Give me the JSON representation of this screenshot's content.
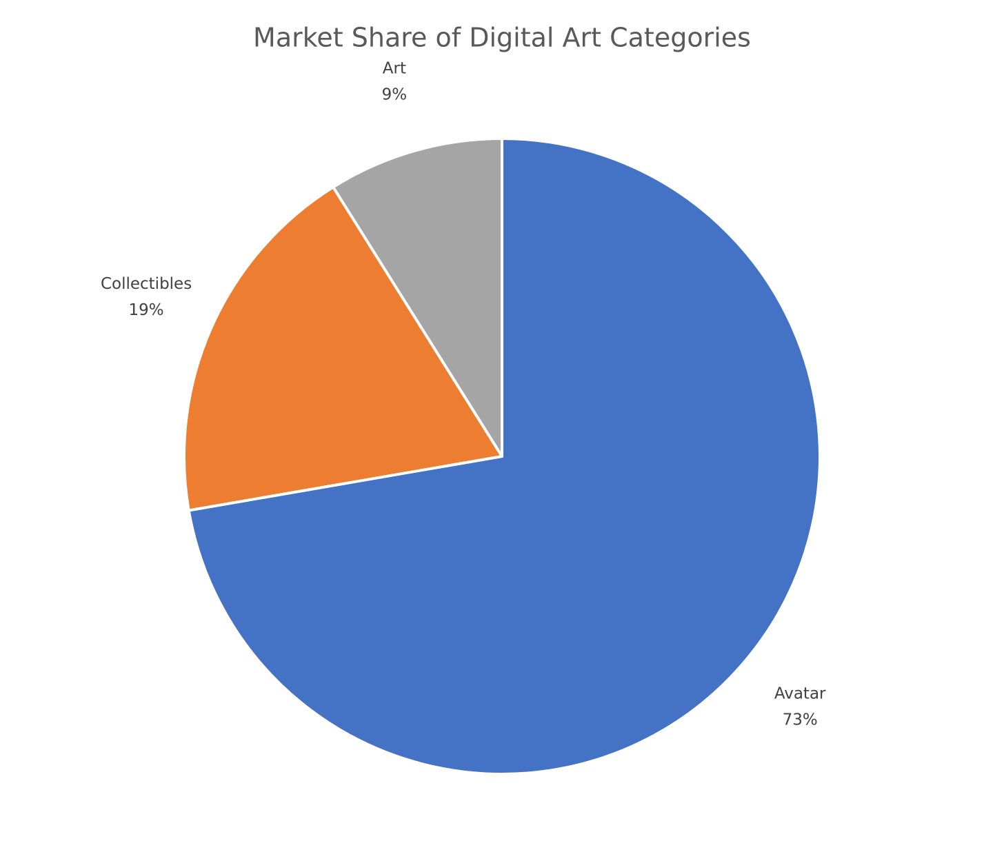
{
  "chart_data": {
    "type": "pie",
    "title": "Market Share of Digital Art Categories",
    "categories": [
      "Avatar",
      "Collectibles",
      "Art"
    ],
    "values": [
      73,
      19,
      9
    ],
    "value_labels": [
      "73%",
      "19%",
      "9%"
    ],
    "colors": [
      "#4472c4",
      "#ed7d31",
      "#a5a5a5"
    ]
  }
}
